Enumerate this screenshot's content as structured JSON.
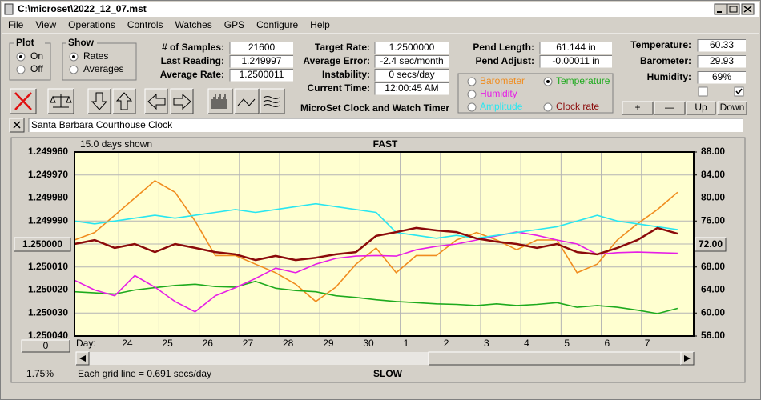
{
  "window": {
    "title": "C:\\microset\\2022_12_07.mst"
  },
  "menu": [
    "File",
    "View",
    "Operations",
    "Controls",
    "Watches",
    "GPS",
    "Configure",
    "Help"
  ],
  "plot_group": {
    "title": "Plot",
    "options": [
      "On",
      "Off"
    ],
    "selected": 0
  },
  "show_group": {
    "title": "Show",
    "options": [
      "Rates",
      "Averages"
    ],
    "selected": 0
  },
  "stats": [
    {
      "label": "# of Samples:",
      "value": "21600"
    },
    {
      "label": "Last Reading:",
      "value": "1.249997"
    },
    {
      "label": "Average Rate:",
      "value": "1.2500011"
    }
  ],
  "rates": [
    {
      "label": "Target Rate:",
      "value": "1.2500000"
    },
    {
      "label": "Average Error:",
      "value": "-2.4 sec/month"
    },
    {
      "label": "Instability:",
      "value": "0 secs/day"
    },
    {
      "label": "Current Time:",
      "value": "12:00:45 AM"
    }
  ],
  "pendulum": [
    {
      "label": "Pend Length:",
      "value": "61.144 in"
    },
    {
      "label": "Pend Adjust:",
      "value": "-0.00011 in"
    }
  ],
  "environment": [
    {
      "label": "Temperature:",
      "value": "60.33"
    },
    {
      "label": "Barometer:",
      "value": "29.93"
    },
    {
      "label": "Humidity:",
      "value": "69%"
    }
  ],
  "checkboxes": [
    false,
    true
  ],
  "env_buttons": [
    "+",
    "—",
    "Up",
    "Down"
  ],
  "app_name": "MicroSet Clock and Watch Timer",
  "clock_name": "Santa Barbara Courthouse Clock",
  "chart": {
    "type": "line",
    "days_shown_label": "15.0 days shown",
    "top_label": "FAST",
    "bottom_label": "SLOW",
    "day_label": "Day:",
    "grid_note": "Each grid line = 0.691 secs/day",
    "percent_label": "1.75%",
    "left_button": "1.250000",
    "right_button": "72.00",
    "zero_button": "0",
    "legend_selected": 1,
    "xlim": [
      0,
      15.4
    ],
    "day_ticks": [
      {
        "value": 1.1,
        "label": "24"
      },
      {
        "value": 2.1,
        "label": "25"
      },
      {
        "value": 3.1,
        "label": "26"
      },
      {
        "value": 4.1,
        "label": "27"
      },
      {
        "value": 5.1,
        "label": "28"
      },
      {
        "value": 6.1,
        "label": "29"
      },
      {
        "value": 7.1,
        "label": "30"
      },
      {
        "value": 8.1,
        "label": "1"
      },
      {
        "value": 9.1,
        "label": "2"
      },
      {
        "value": 10.1,
        "label": "3"
      },
      {
        "value": 11.1,
        "label": "4"
      },
      {
        "value": 12.1,
        "label": "5"
      },
      {
        "value": 13.1,
        "label": "6"
      },
      {
        "value": 14.1,
        "label": "7"
      }
    ],
    "ylim": [
      1.24996,
      1.25004
    ],
    "y_inverted": true,
    "yticks": [
      {
        "value": 1.24996,
        "label": "1.249960"
      },
      {
        "value": 1.24997,
        "label": "1.249970"
      },
      {
        "value": 1.24998,
        "label": "1.249980"
      },
      {
        "value": 1.24999,
        "label": "1.249990"
      },
      {
        "value": 1.25,
        "label": "1.250000"
      },
      {
        "value": 1.25001,
        "label": "1.250010"
      },
      {
        "value": 1.25002,
        "label": "1.250020"
      },
      {
        "value": 1.25003,
        "label": "1.250030"
      },
      {
        "value": 1.25004,
        "label": "1.250040"
      }
    ],
    "y2lim": [
      56,
      88
    ],
    "y2ticks": [
      {
        "value": 88,
        "label": "88.00"
      },
      {
        "value": 84,
        "label": "84.00"
      },
      {
        "value": 80,
        "label": "80.00"
      },
      {
        "value": 76,
        "label": "76.00"
      },
      {
        "value": 72,
        "label": "72.00"
      },
      {
        "value": 68,
        "label": "68.00"
      },
      {
        "value": 64,
        "label": "64.00"
      },
      {
        "value": 60,
        "label": "60.00"
      },
      {
        "value": 56,
        "label": "56.00"
      }
    ],
    "x": [
      0,
      0.5,
      1,
      1.5,
      2,
      2.5,
      3,
      3.5,
      4,
      4.5,
      5,
      5.5,
      6,
      6.5,
      7,
      7.5,
      8,
      8.5,
      9,
      9.5,
      10,
      10.5,
      11,
      11.5,
      12,
      12.5,
      13,
      13.5,
      14,
      14.5,
      15
    ],
    "series": [
      {
        "name": "Barometer",
        "color": "#f08c1e",
        "axis": "y2",
        "values": [
          72.7,
          74,
          77,
          80,
          83,
          81,
          76,
          70,
          70,
          68.5,
          67,
          65,
          62,
          64.5,
          68.5,
          71.3,
          67,
          70,
          70,
          72.7,
          74,
          72.7,
          71,
          72.7,
          72.7,
          67,
          68.5,
          72.7,
          75.5,
          78,
          81
        ]
      },
      {
        "name": "Temperature",
        "color": "#1eaa1e",
        "axis": "y2",
        "values": [
          63.7,
          63.5,
          63.3,
          64,
          64.4,
          64.8,
          65,
          64.6,
          64.5,
          65.5,
          64.3,
          63.9,
          63.7,
          63,
          62.7,
          62.3,
          62,
          61.8,
          61.6,
          61.5,
          61.3,
          61.6,
          61.3,
          61.5,
          61.8,
          61,
          61.3,
          61,
          60.5,
          59.9,
          60.8
        ]
      },
      {
        "name": "Humidity",
        "color": "#e61ee6",
        "axis": "y2",
        "values": [
          65.7,
          64,
          63,
          66.5,
          64.5,
          62,
          60.2,
          63,
          64.4,
          66,
          67.8,
          67,
          68.5,
          69.5,
          69.9,
          70,
          69.9,
          71,
          71.6,
          72,
          72.7,
          73.4,
          74.1,
          73.5,
          72.7,
          72,
          70.2,
          70.5,
          70.6,
          70.5,
          70.4
        ]
      },
      {
        "name": "Amplitude",
        "color": "#28e6f0",
        "axis": "y2",
        "values": [
          76,
          75.5,
          76,
          76.5,
          77,
          76.5,
          77,
          77.5,
          78,
          77.5,
          78,
          78.5,
          79,
          78.5,
          78,
          77.5,
          74,
          73.5,
          73,
          73.5,
          73,
          73.5,
          74,
          74.5,
          75,
          76,
          77,
          76,
          75.5,
          75,
          74.5
        ]
      },
      {
        "name": "Clock rate",
        "color": "#8b0a0a",
        "axis": "y",
        "values": [
          1.25,
          1.2499983,
          1.2500017,
          1.25,
          1.2500035,
          1.25,
          1.2500017,
          1.2500035,
          1.2500045,
          1.250007,
          1.2500052,
          1.250007,
          1.250006,
          1.2500045,
          1.2500035,
          1.2499965,
          1.2499948,
          1.249993,
          1.2499941,
          1.2499948,
          1.2499976,
          1.249999,
          1.25,
          1.2500017,
          1.25,
          1.2500035,
          1.2500045,
          1.2500017,
          1.2499983,
          1.249993,
          1.2499955
        ]
      }
    ]
  }
}
